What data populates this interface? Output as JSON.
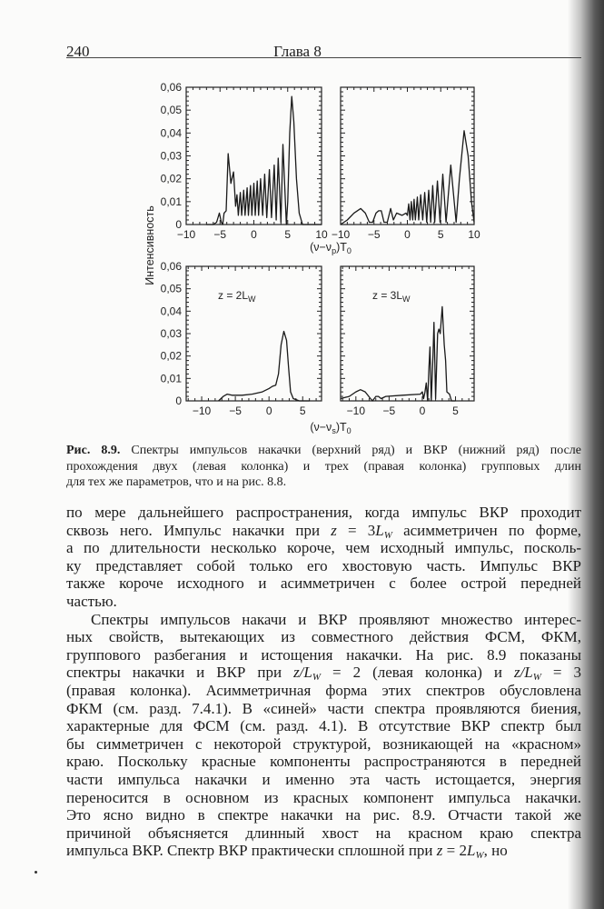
{
  "header": {
    "page_number": "240",
    "running_title": "Глава 8"
  },
  "figure": {
    "ylabel": "Интенсивность",
    "top_xlabel": [
      "(ν−ν",
      "p",
      ")T",
      "0"
    ],
    "bottom_xlabel": [
      "(ν−ν",
      "s",
      ")T",
      "0"
    ],
    "caption_label": "Рис. 8.9.",
    "caption_lines": [
      " Спектры импульсов накачки (верхний ряд) и ВКР (нижний ряд) после",
      "прохождения двух (левая колонка) и трех (правая колонка) групповых длин",
      "для тех же параметров, что и на рис. 8.8."
    ]
  },
  "chart_data": {
    "type": "line",
    "ylabel": "Интенсивность",
    "grid": false,
    "line_color": "#1a1a1a",
    "panels": [
      {
        "position": "top-left",
        "xlim": [
          -10,
          10
        ],
        "ylim": [
          0,
          0.06
        ],
        "xticks": [
          -10,
          -5,
          0,
          5,
          10
        ],
        "xtick_labels": [
          "−10",
          "−5",
          "0",
          "5",
          "10"
        ],
        "yticks": [
          0,
          0.01,
          0.02,
          0.03,
          0.04,
          0.05,
          0.06
        ],
        "ytick_labels": [
          "0",
          "0,01",
          "0,02",
          "0,03",
          "0,04",
          "0,05",
          "0,06"
        ],
        "annotation": null,
        "points": [
          [
            -7,
            0
          ],
          [
            -6,
            0
          ],
          [
            -5.5,
            0.001
          ],
          [
            -5.1,
            0.005
          ],
          [
            -4.8,
            0.001
          ],
          [
            -4.6,
            0
          ],
          [
            -4.4,
            0.005
          ],
          [
            -4.1,
            0.006
          ],
          [
            -3.8,
            0.031
          ],
          [
            -3.4,
            0.018
          ],
          [
            -3.0,
            0.023
          ],
          [
            -2.7,
            0.008
          ],
          [
            -2.5,
            0.013
          ],
          [
            -2.3,
            0.004
          ],
          [
            -2.0,
            0.014
          ],
          [
            -1.8,
            0.004
          ],
          [
            -1.5,
            0.015
          ],
          [
            -1.3,
            0.004
          ],
          [
            -1.0,
            0.016
          ],
          [
            -0.8,
            0.004
          ],
          [
            -0.5,
            0.017
          ],
          [
            -0.3,
            0.004
          ],
          [
            0,
            0.018
          ],
          [
            0.2,
            0.004
          ],
          [
            0.5,
            0.019
          ],
          [
            0.7,
            0.004
          ],
          [
            1.0,
            0.02
          ],
          [
            1.3,
            0.004
          ],
          [
            1.6,
            0.022
          ],
          [
            1.9,
            0.003
          ],
          [
            2.3,
            0.024
          ],
          [
            2.6,
            0.003
          ],
          [
            3.0,
            0.026
          ],
          [
            3.3,
            0.002
          ],
          [
            3.6,
            0.029
          ],
          [
            4.0,
            0.001
          ],
          [
            4.3,
            0.035
          ],
          [
            4.8,
            0
          ],
          [
            5.0,
            0.01
          ],
          [
            5.3,
            0.04
          ],
          [
            5.6,
            0.056
          ],
          [
            5.9,
            0.045
          ],
          [
            6.3,
            0.02
          ],
          [
            6.7,
            0.005
          ],
          [
            7.2,
            0
          ],
          [
            10,
            0
          ]
        ]
      },
      {
        "position": "top-right",
        "xlim": [
          -10,
          10
        ],
        "ylim": [
          0,
          0.06
        ],
        "xticks": [
          -10,
          -5,
          0,
          5,
          10
        ],
        "xtick_labels": [
          "−10",
          "−5",
          "0",
          "5",
          "10"
        ],
        "yticks": [],
        "ytick_labels": [],
        "annotation": null,
        "points": [
          [
            -10,
            0
          ],
          [
            -9,
            0.002
          ],
          [
            -8,
            0.005
          ],
          [
            -7,
            0.007
          ],
          [
            -6.3,
            0.005
          ],
          [
            -5.7,
            0.001
          ],
          [
            -5.2,
            0.001
          ],
          [
            -4.7,
            0.005
          ],
          [
            -4.3,
            0.006
          ],
          [
            -3.9,
            0.006
          ],
          [
            -3.5,
            0.001
          ],
          [
            -3.0,
            0.001
          ],
          [
            -2.5,
            0.007
          ],
          [
            -2.1,
            0.002
          ],
          [
            -1.6,
            0.005
          ],
          [
            -0.8,
            0.004
          ],
          [
            -0.2,
            0.005
          ],
          [
            0,
            0.004
          ],
          [
            0.2,
            0.009
          ],
          [
            0.4,
            0.002
          ],
          [
            0.6,
            0.01
          ],
          [
            0.8,
            0.002
          ],
          [
            1.0,
            0.011
          ],
          [
            1.2,
            0.002
          ],
          [
            1.5,
            0.012
          ],
          [
            1.7,
            0.002
          ],
          [
            2.0,
            0.013
          ],
          [
            2.3,
            0.002
          ],
          [
            2.6,
            0.014
          ],
          [
            2.9,
            0.001
          ],
          [
            3.2,
            0.015
          ],
          [
            3.5,
            0.001
          ],
          [
            3.8,
            0.017
          ],
          [
            4.1,
            0.001
          ],
          [
            4.5,
            0.019
          ],
          [
            4.9,
            0.001
          ],
          [
            5.3,
            0.022
          ],
          [
            5.8,
            0.001
          ],
          [
            6.5,
            0.026
          ],
          [
            7.3,
            0.001
          ],
          [
            7.8,
            0.02
          ],
          [
            8.5,
            0.041
          ],
          [
            9.1,
            0.03
          ],
          [
            9.6,
            0.01
          ],
          [
            10,
            0.001
          ]
        ]
      },
      {
        "position": "bottom-left",
        "xlim": [
          -12.3,
          7.8
        ],
        "ylim": [
          0,
          0.06
        ],
        "xticks": [
          -10,
          -5,
          0,
          5
        ],
        "xtick_labels": [
          "−10",
          "−5",
          "0",
          "5"
        ],
        "yticks": [
          0,
          0.01,
          0.02,
          0.03,
          0.04,
          0.05,
          0.06
        ],
        "ytick_labels": [
          "0",
          "0,01",
          "0,02",
          "0,03",
          "0,04",
          "0,05",
          "0,06"
        ],
        "annotation": [
          "z = 2L",
          "W"
        ],
        "points": [
          [
            -7.5,
            0
          ],
          [
            -6.8,
            0.002
          ],
          [
            -6.2,
            0.003
          ],
          [
            -5.5,
            0.0025
          ],
          [
            -4,
            0.0025
          ],
          [
            -2.5,
            0.003
          ],
          [
            -1,
            0.004
          ],
          [
            0,
            0.0055
          ],
          [
            0.5,
            0.0065
          ],
          [
            1.0,
            0.007
          ],
          [
            1.4,
            0.012
          ],
          [
            1.8,
            0.025
          ],
          [
            2.2,
            0.031
          ],
          [
            2.6,
            0.027
          ],
          [
            2.9,
            0.015
          ],
          [
            3.2,
            0.004
          ],
          [
            3.6,
            0.001
          ],
          [
            4.5,
            0
          ],
          [
            6,
            0
          ]
        ]
      },
      {
        "position": "bottom-right",
        "xlim": [
          -12.3,
          7.8
        ],
        "ylim": [
          0,
          0.06
        ],
        "xticks": [
          -10,
          -5,
          0,
          5
        ],
        "xtick_labels": [
          "−10",
          "−5",
          "0",
          "5"
        ],
        "yticks": [],
        "ytick_labels": [],
        "annotation": [
          "z = 3L",
          "W"
        ],
        "points": [
          [
            -12.3,
            0.001
          ],
          [
            -11,
            0.002
          ],
          [
            -10,
            0.004
          ],
          [
            -9.3,
            0.005
          ],
          [
            -8.6,
            0.004
          ],
          [
            -7.8,
            0.001
          ],
          [
            -7.5,
            0
          ],
          [
            -7,
            0.002
          ],
          [
            -6.6,
            0.002
          ],
          [
            -6.2,
            0.001
          ],
          [
            -5.5,
            0.002
          ],
          [
            -3,
            0.0025
          ],
          [
            -0.3,
            0.003
          ],
          [
            0,
            0.004
          ],
          [
            0.2,
            0.001
          ],
          [
            0.4,
            0.004
          ],
          [
            0.6,
            0.008
          ],
          [
            0.8,
            0
          ],
          [
            1.0,
            0.015
          ],
          [
            1.15,
            0.024
          ],
          [
            1.35,
            0
          ],
          [
            1.6,
            0.02
          ],
          [
            1.75,
            0.035
          ],
          [
            2.0,
            0.001
          ],
          [
            2.3,
            0.03
          ],
          [
            2.5,
            0.032
          ],
          [
            2.7,
            0.03
          ],
          [
            3.0,
            0.042
          ],
          [
            3.3,
            0.025
          ],
          [
            3.5,
            0.018
          ],
          [
            3.7,
            0.004
          ],
          [
            4.1,
            0.003
          ],
          [
            4.4,
            0
          ],
          [
            5,
            0
          ]
        ]
      }
    ]
  },
  "body": {
    "paragraphs": [
      {
        "indent": false,
        "lines": [
          [
            {
              "t": "по мере дальнейшего распространения, когда импульс ВКР проходит"
            }
          ],
          [
            {
              "t": "сквозь него. Импульс накачки при "
            },
            {
              "m": "z"
            },
            {
              "t": " = 3"
            },
            {
              "m": "L"
            },
            {
              "sub": "W"
            },
            {
              "t": " асимметричен по форме,"
            }
          ],
          [
            {
              "t": "а по длительности несколько короче, чем исходный импульс, посколь-"
            }
          ],
          [
            {
              "t": "ку представляет собой только его хвостовую часть. Импульс ВКР"
            }
          ],
          [
            {
              "t": "также короче исходного и асимметричен с более острой передней"
            }
          ],
          [
            {
              "t": "частью."
            }
          ]
        ]
      },
      {
        "indent": true,
        "lines": [
          [
            {
              "t": "Спектры импульсов накачи и ВКР проявляют множество интерес-"
            }
          ],
          [
            {
              "t": "ных свойств, вытекающих из совместного действия ФСМ, ФКМ,"
            }
          ],
          [
            {
              "t": "группового разбегания и истощения накачки. На рис. 8.9 показаны"
            }
          ],
          [
            {
              "t": "спектры накачки и ВКР при "
            },
            {
              "m": "z/L"
            },
            {
              "sub": "W"
            },
            {
              "t": " = 2 (левая колонка) и "
            },
            {
              "m": "z/L"
            },
            {
              "sub": "W"
            },
            {
              "t": " = 3"
            }
          ],
          [
            {
              "t": "(правая колонка). Асимметричная форма этих спектров обусловлена"
            }
          ],
          [
            {
              "t": "ФКМ (см. разд. 7.4.1). В «синей» части спектра проявляются биения,"
            }
          ],
          [
            {
              "t": "характерные для ФСМ (см. разд. 4.1). В отсутствие ВКР спектр был"
            }
          ],
          [
            {
              "t": "бы симметричен с некоторой структурой, возникающей на «красном»"
            }
          ],
          [
            {
              "t": "краю. Поскольку красные компоненты распространяются в передней"
            }
          ],
          [
            {
              "t": "части импульса накачки и именно эта часть истощается, энергия"
            }
          ],
          [
            {
              "t": "переносится в основном из красных компонент импульса накачки."
            }
          ],
          [
            {
              "t": "Это ясно видно в спектре накачки на рис. 8.9. Отчасти такой же"
            }
          ],
          [
            {
              "t": "причиной объясняется длинный хвост на красном краю спектра"
            }
          ],
          [
            {
              "t": "импульса ВКР. Спектр ВКР практически сплошной при "
            },
            {
              "m": "z"
            },
            {
              "t": " = 2"
            },
            {
              "m": "L"
            },
            {
              "sub": "W"
            },
            {
              "t": ", но"
            }
          ]
        ]
      }
    ]
  }
}
